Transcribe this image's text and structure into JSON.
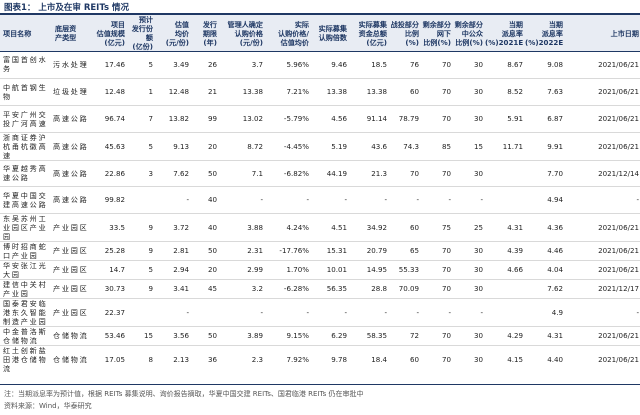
{
  "title": "图表1：  上市及在审 REITs 情况",
  "columns": [
    {
      "key": "name",
      "label": "项目名称"
    },
    {
      "key": "asset",
      "label": "底层资\n产类型"
    },
    {
      "key": "size",
      "label": "项目\n估值规模\n(亿元)"
    },
    {
      "key": "units",
      "label": "预计\n发行份额\n(亿份)"
    },
    {
      "key": "val_per",
      "label": "估值\n均价\n(元/份)"
    },
    {
      "key": "term",
      "label": "发行\n期限\n(年)"
    },
    {
      "key": "mgr_price",
      "label": "管理人确定\n认购价格\n(元/份)"
    },
    {
      "key": "prem_val",
      "label": "实际\n认购价格/\n估值均价"
    },
    {
      "key": "sub_mult",
      "label": "实际募集\n认购倍数"
    },
    {
      "key": "raised",
      "label": "实际募集\n资金总额\n(亿元)"
    },
    {
      "key": "strat",
      "label": "战投部分\n比例\n(%)"
    },
    {
      "key": "off_rem",
      "label": "剩余部分\n网下\n比例(%)"
    },
    {
      "key": "pub_rem",
      "label": "剩余部分\n中公众\n比例(%)"
    },
    {
      "key": "dy21",
      "label": "当期\n派息率\n(%)2021E"
    },
    {
      "key": "dy22",
      "label": "当期\n派息率\n(%)2022E"
    },
    {
      "key": "date",
      "label": "上市日期"
    }
  ],
  "rows": [
    {
      "name": "富国首创水务",
      "asset": "污水处理",
      "size": "17.46",
      "units": "5",
      "val_per": "3.49",
      "term": "26",
      "mgr_price": "3.7",
      "prem_val": "5.96%",
      "sub_mult": "9.46",
      "raised": "18.5",
      "strat": "76",
      "off_rem": "70",
      "pub_rem": "30",
      "dy21": "8.67",
      "dy22": "9.08",
      "date": "2021/06/21"
    },
    {
      "name": "中航首钢生物",
      "asset": "垃圾处理",
      "size": "12.48",
      "units": "1",
      "val_per": "12.48",
      "term": "21",
      "mgr_price": "13.38",
      "prem_val": "7.21%",
      "sub_mult": "13.38",
      "raised": "13.38",
      "strat": "60",
      "off_rem": "70",
      "pub_rem": "30",
      "dy21": "8.52",
      "dy22": "7.63",
      "date": "2021/06/21"
    },
    {
      "name": "平安广州交投广河高速",
      "asset": "高速公路",
      "size": "96.74",
      "units": "7",
      "val_per": "13.82",
      "term": "99",
      "mgr_price": "13.02",
      "prem_val": "-5.79%",
      "sub_mult": "4.56",
      "raised": "91.14",
      "strat": "78.79",
      "off_rem": "70",
      "pub_rem": "30",
      "dy21": "5.91",
      "dy22": "6.87",
      "date": "2021/06/21"
    },
    {
      "name": "浙商证券沪杭甬杭徽高速",
      "asset": "高速公路",
      "size": "45.63",
      "units": "5",
      "val_per": "9.13",
      "term": "20",
      "mgr_price": "8.72",
      "prem_val": "-4.45%",
      "sub_mult": "5.19",
      "raised": "43.6",
      "strat": "74.3",
      "off_rem": "85",
      "pub_rem": "15",
      "dy21": "11.71",
      "dy22": "9.91",
      "date": "2021/06/21"
    },
    {
      "name": "华夏越秀高速公路",
      "asset": "高速公路",
      "size": "22.86",
      "units": "3",
      "val_per": "7.62",
      "term": "50",
      "mgr_price": "7.1",
      "prem_val": "-6.82%",
      "sub_mult": "44.19",
      "raised": "21.3",
      "strat": "70",
      "off_rem": "70",
      "pub_rem": "30",
      "dy21": "",
      "dy22": "7.70",
      "date": "2021/12/14"
    },
    {
      "name": "华夏中国交建高速公路",
      "asset": "高速公路",
      "size": "99.82",
      "units": "",
      "val_per": "-",
      "term": "40",
      "mgr_price": "-",
      "prem_val": "-",
      "sub_mult": "-",
      "raised": "-",
      "strat": "-",
      "off_rem": "-",
      "pub_rem": "-",
      "dy21": "",
      "dy22": "4.94",
      "date": "-"
    },
    {
      "name": "东吴苏州工业园区产业园",
      "asset": "产业园区",
      "size": "33.5",
      "units": "9",
      "val_per": "3.72",
      "term": "40",
      "mgr_price": "3.88",
      "prem_val": "4.24%",
      "sub_mult": "4.51",
      "raised": "34.92",
      "strat": "60",
      "off_rem": "75",
      "pub_rem": "25",
      "dy21": "4.31",
      "dy22": "4.36",
      "date": "2021/06/21"
    },
    {
      "name": "博时招商蛇口产业园",
      "asset": "产业园区",
      "size": "25.28",
      "units": "9",
      "val_per": "2.81",
      "term": "50",
      "mgr_price": "2.31",
      "prem_val": "-17.76%",
      "sub_mult": "15.31",
      "raised": "20.79",
      "strat": "65",
      "off_rem": "70",
      "pub_rem": "30",
      "dy21": "4.39",
      "dy22": "4.46",
      "date": "2021/06/21"
    },
    {
      "name": "华安张江光大园",
      "asset": "产业园区",
      "size": "14.7",
      "units": "5",
      "val_per": "2.94",
      "term": "20",
      "mgr_price": "2.99",
      "prem_val": "1.70%",
      "sub_mult": "10.01",
      "raised": "14.95",
      "strat": "55.33",
      "off_rem": "70",
      "pub_rem": "30",
      "dy21": "4.66",
      "dy22": "4.04",
      "date": "2021/06/21"
    },
    {
      "name": "建信中关村产业园",
      "asset": "产业园区",
      "size": "30.73",
      "units": "9",
      "val_per": "3.41",
      "term": "45",
      "mgr_price": "3.2",
      "prem_val": "-6.28%",
      "sub_mult": "56.35",
      "raised": "28.8",
      "strat": "70.09",
      "off_rem": "70",
      "pub_rem": "30",
      "dy21": "",
      "dy22": "7.62",
      "date": "2021/12/17"
    },
    {
      "name": "国泰君安临港东久智能制造产业园",
      "asset": "产业园区",
      "size": "22.37",
      "units": "",
      "val_per": "-",
      "term": "",
      "mgr_price": "-",
      "prem_val": "-",
      "sub_mult": "-",
      "raised": "-",
      "strat": "-",
      "off_rem": "-",
      "pub_rem": "-",
      "dy21": "",
      "dy22": "4.9",
      "date": "-"
    },
    {
      "name": "中金普洛斯仓储物流",
      "asset": "仓储物流",
      "size": "53.46",
      "units": "15",
      "val_per": "3.56",
      "term": "50",
      "mgr_price": "3.89",
      "prem_val": "9.15%",
      "sub_mult": "6.29",
      "raised": "58.35",
      "strat": "72",
      "off_rem": "70",
      "pub_rem": "30",
      "dy21": "4.29",
      "dy22": "4.31",
      "date": "2021/06/21"
    },
    {
      "name": "红土创新盐田港仓储物流",
      "asset": "仓储物流",
      "size": "17.05",
      "units": "8",
      "val_per": "2.13",
      "term": "36",
      "mgr_price": "2.3",
      "prem_val": "7.92%",
      "sub_mult": "9.78",
      "raised": "18.4",
      "strat": "60",
      "off_rem": "70",
      "pub_rem": "30",
      "dy21": "4.15",
      "dy22": "4.40",
      "date": "2021/06/21"
    }
  ],
  "notes": [
    "注：当期派息率为预计值，根据 REITs 募集说明、询价报告摘取，华夏中国交建 REITs、国君临港 REITs 仍在审批中",
    "资料来源：Wind，华泰研究"
  ]
}
